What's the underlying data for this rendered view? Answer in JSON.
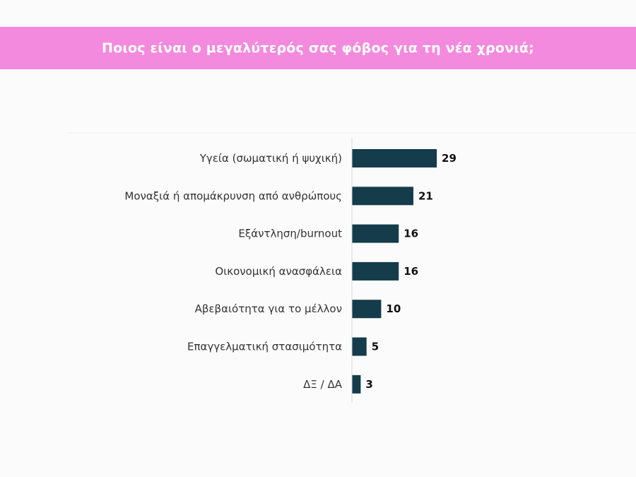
{
  "chart_data": {
    "type": "bar",
    "orientation": "horizontal",
    "title": "Ποιος είναι ο μεγαλύτερός σας φόβος για τη νέα χρονιά;",
    "categories": [
      "Υγεία (σωματική ή ψυχική)",
      "Μοναξιά ή απομάκρυνση από ανθρώπους",
      "Εξάντληση/burnout",
      "Οικονομική ανασφάλεια",
      "Αβεβαιότητα για το μέλλον",
      "Επαγγελματική στασιμότητα",
      "ΔΞ / ΔΑ"
    ],
    "values": [
      29,
      21,
      16,
      16,
      10,
      5,
      3
    ],
    "xlabel": "",
    "ylabel": "",
    "grid": false,
    "legend": "none",
    "colors": {
      "bar": "#143c4a",
      "banner": "#f48ade",
      "title_text": "#ffffff"
    }
  }
}
